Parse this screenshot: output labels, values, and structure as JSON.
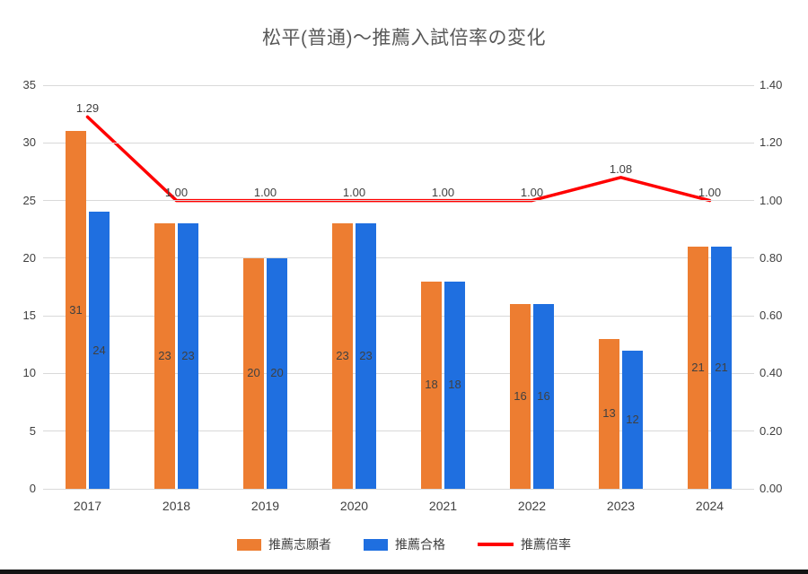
{
  "title": "松平(普通)～推薦入試倍率の変化",
  "chart_data": {
    "type": "combo-bar-line",
    "categories": [
      "2017",
      "2018",
      "2019",
      "2020",
      "2021",
      "2022",
      "2023",
      "2024"
    ],
    "bar_series": [
      {
        "name": "推薦志願者",
        "color": "#ED7D31",
        "axis": "left",
        "values": [
          31,
          23,
          20,
          23,
          18,
          16,
          13,
          21
        ],
        "labels": [
          "31",
          "23",
          "20",
          "23",
          "18",
          "16",
          "13",
          "21"
        ]
      },
      {
        "name": "推薦合格",
        "color": "#1F6FE0",
        "axis": "left",
        "values": [
          24,
          23,
          20,
          23,
          18,
          16,
          12,
          21
        ],
        "labels": [
          "24",
          "23",
          "20",
          "23",
          "18",
          "16",
          "12",
          "21"
        ]
      }
    ],
    "line_series": {
      "name": "推薦倍率",
      "color": "#FF0000",
      "axis": "right",
      "values": [
        1.29,
        1.0,
        1.0,
        1.0,
        1.0,
        1.0,
        1.08,
        1.0
      ],
      "labels": [
        "1.29",
        "1.00",
        "1.00",
        "1.00",
        "1.00",
        "1.00",
        "1.08",
        "1.00"
      ]
    },
    "left_axis": {
      "min": 0,
      "max": 35,
      "step": 5,
      "ticks": [
        "35",
        "30",
        "25",
        "20",
        "15",
        "10",
        "5",
        "0"
      ]
    },
    "right_axis": {
      "min": 0,
      "max": 1.4,
      "step": 0.2,
      "ticks": [
        "1.40",
        "1.20",
        "1.00",
        "0.80",
        "0.60",
        "0.40",
        "0.20",
        "0.00"
      ]
    },
    "grid": true,
    "gridline_color": "#d9d9d9",
    "legend_position": "bottom",
    "legend": [
      "推薦志願者",
      "推薦合格",
      "推薦倍率"
    ]
  }
}
